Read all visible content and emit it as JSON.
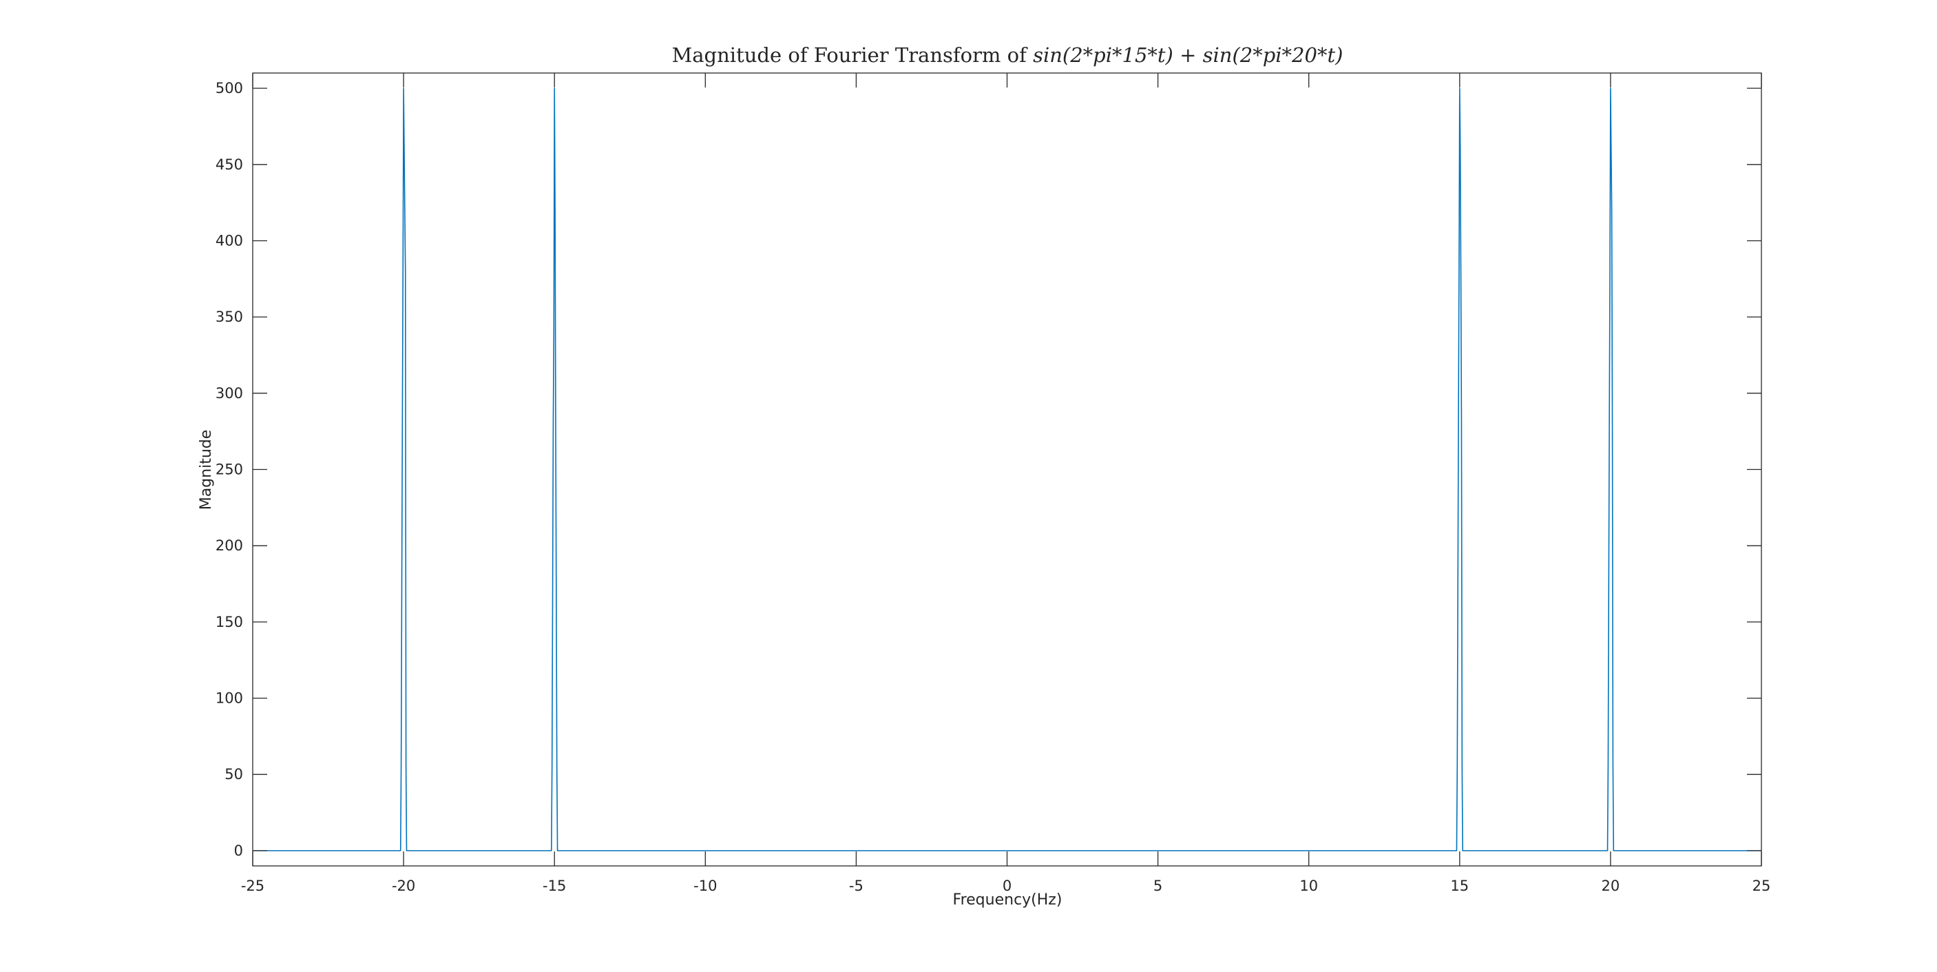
{
  "chart_data": {
    "type": "line",
    "title": "Magnitude of Fourier Transform of sin(2*pi*15*t)+sin(2*pi*20*t)",
    "title_parts": {
      "prefix": "Magnitude of Fourier Transform of ",
      "formula": "sin(2*pi*15*t) + sin(2*pi*20*t)"
    },
    "xlabel": "Frequency(Hz)",
    "ylabel": "Magnitude",
    "xlim": [
      -25,
      25
    ],
    "ylim": [
      -10,
      510
    ],
    "xticks": [
      -25,
      -20,
      -15,
      -10,
      -5,
      0,
      5,
      10,
      15,
      20,
      25
    ],
    "yticks": [
      0,
      50,
      100,
      150,
      200,
      250,
      300,
      350,
      400,
      450,
      500
    ],
    "grid": false,
    "line_color": "#0072bd",
    "series": [
      {
        "x": [
          -25,
          -20.1,
          -20.08,
          -20.06,
          -20.04,
          -20.02,
          -20.0,
          -19.98,
          -19.96,
          -19.94,
          -19.92,
          -19.9,
          -15.1,
          -15.08,
          -15.06,
          -15.04,
          -15.02,
          -15.0,
          -14.98,
          -14.96,
          -14.94,
          -14.92,
          -14.9,
          14.9,
          14.92,
          14.94,
          14.96,
          14.98,
          15.0,
          15.02,
          15.04,
          15.06,
          15.08,
          15.1,
          19.9,
          19.92,
          19.94,
          19.96,
          19.98,
          20.0,
          20.02,
          20.04,
          20.06,
          20.08,
          20.1,
          25
        ],
        "y": [
          0,
          0,
          55,
          170,
          283,
          380,
          500,
          460,
          420,
          380,
          55,
          0,
          0,
          55,
          170,
          283,
          340,
          500,
          420,
          283,
          170,
          55,
          0,
          0,
          55,
          170,
          283,
          380,
          500,
          460,
          380,
          283,
          55,
          0,
          0,
          55,
          170,
          283,
          380,
          500,
          460,
          420,
          283,
          55,
          0,
          0
        ]
      }
    ]
  }
}
